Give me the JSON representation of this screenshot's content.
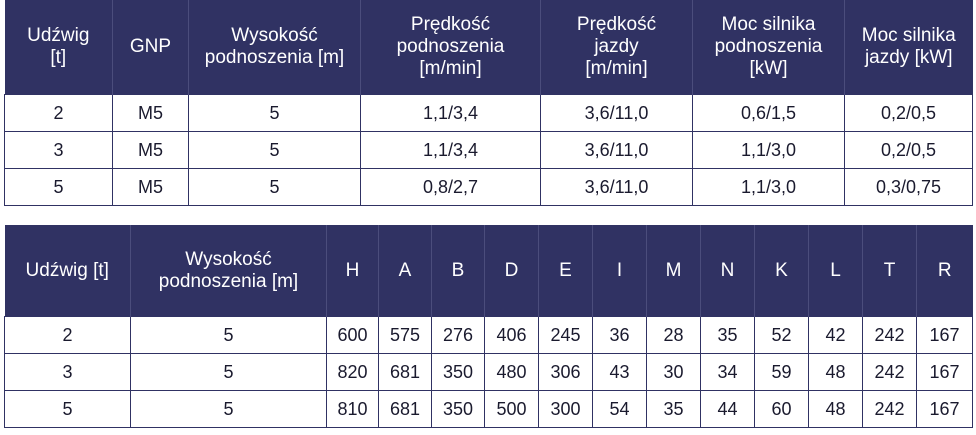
{
  "table1": {
    "headers": [
      [
        "Udźwig",
        "[t]"
      ],
      [
        "GNP"
      ],
      [
        "Wysokość",
        "podnoszenia [m]"
      ],
      [
        "Prędkość",
        "podnoszenia",
        "[m/min]"
      ],
      [
        "Prędkość",
        "jazdy",
        "[m/min]"
      ],
      [
        "Moc silnika",
        "podnoszenia",
        "[kW]"
      ],
      [
        "Moc silnika",
        "jazdy [kW]"
      ]
    ],
    "rows": [
      [
        "2",
        "M5",
        "5",
        "1,1/3,4",
        "3,6/11,0",
        "0,6/1,5",
        "0,2/0,5"
      ],
      [
        "3",
        "M5",
        "5",
        "1,1/3,4",
        "3,6/11,0",
        "1,1/3,0",
        "0,2/0,5"
      ],
      [
        "5",
        "M5",
        "5",
        "0,8/2,7",
        "3,6/11,0",
        "1,1/3,0",
        "0,3/0,75"
      ]
    ]
  },
  "table2": {
    "headers": [
      [
        "Udźwig [t]"
      ],
      [
        "Wysokość",
        "podnoszenia [m]"
      ],
      [
        "H"
      ],
      [
        "A"
      ],
      [
        "B"
      ],
      [
        "D"
      ],
      [
        "E"
      ],
      [
        "I"
      ],
      [
        "M"
      ],
      [
        "N"
      ],
      [
        "K"
      ],
      [
        "L"
      ],
      [
        "T"
      ],
      [
        "R"
      ]
    ],
    "rows": [
      [
        "2",
        "5",
        "600",
        "575",
        "276",
        "406",
        "245",
        "36",
        "28",
        "35",
        "52",
        "42",
        "242",
        "167"
      ],
      [
        "3",
        "5",
        "820",
        "681",
        "350",
        "480",
        "306",
        "43",
        "30",
        "34",
        "59",
        "48",
        "242",
        "167"
      ],
      [
        "5",
        "5",
        "810",
        "681",
        "350",
        "500",
        "300",
        "54",
        "35",
        "44",
        "60",
        "48",
        "242",
        "167"
      ]
    ]
  },
  "colors": {
    "header_bg": "#303263",
    "header_text": "#ffffff",
    "border": "#303263"
  }
}
